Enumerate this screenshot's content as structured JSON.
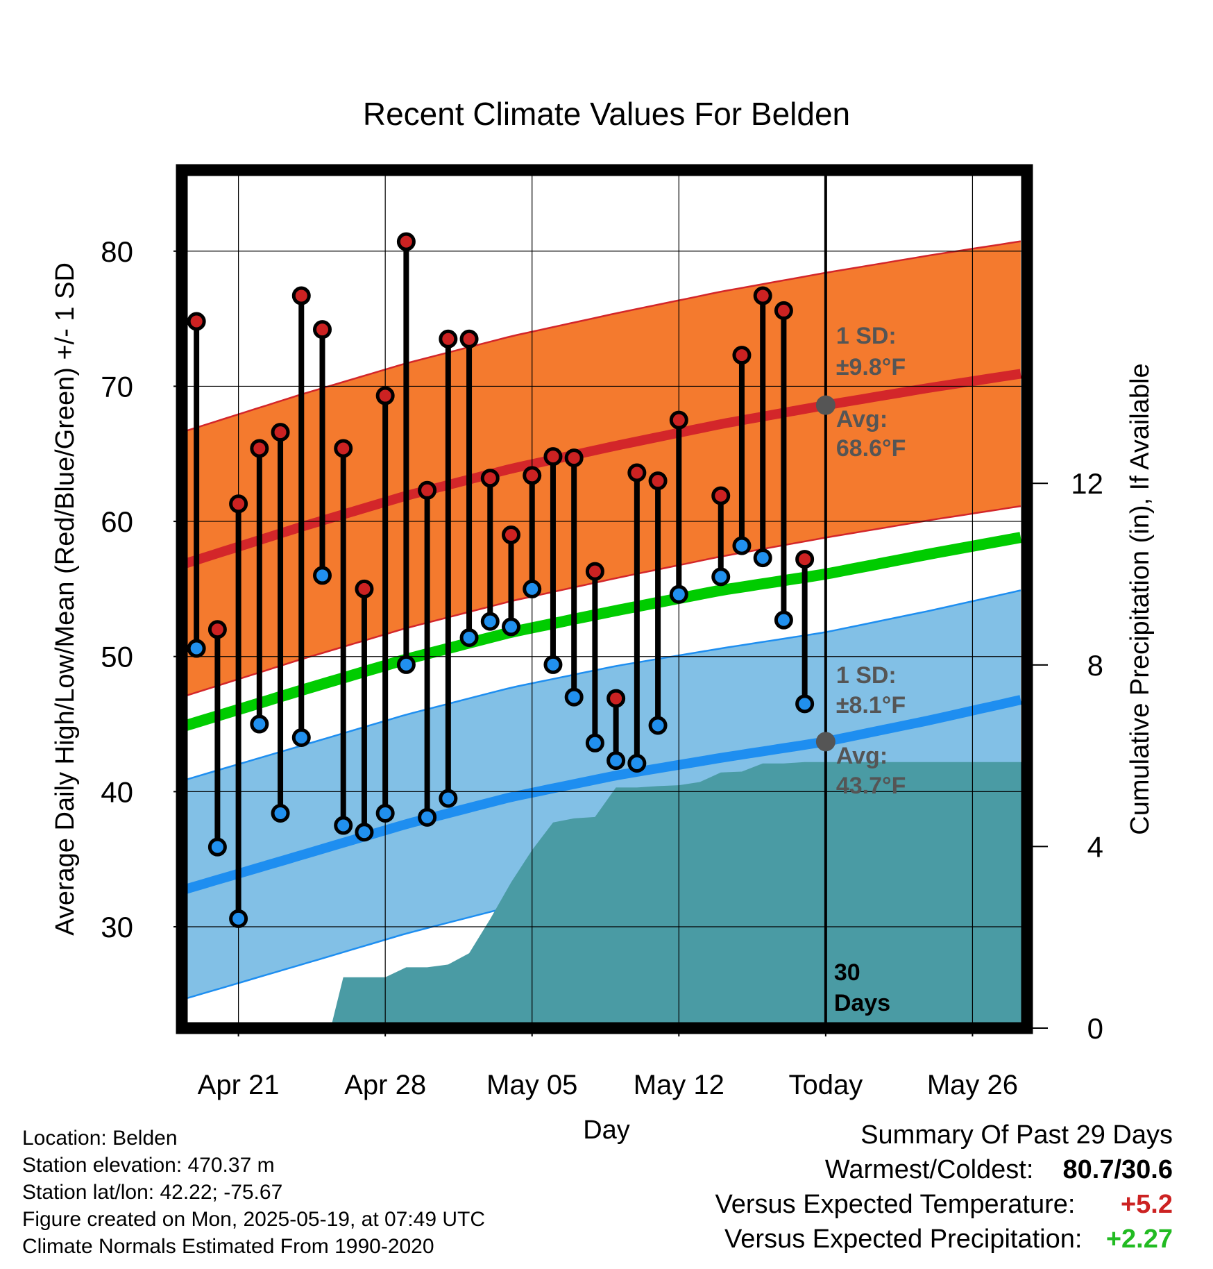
{
  "chart_data": {
    "type": "range-bar",
    "title": "Recent Climate Values For Belden",
    "xlabel": "Day",
    "ylabel_left": "Average Daily High/Low/Mean (Red/Blue/Green) +/- 1 SD",
    "ylabel_right": "Cumulative Precipitation (in), If Available",
    "ylim_left": [
      22.5,
      86
    ],
    "ylim_right": [
      0,
      18.9
    ],
    "yticks_left": [
      "30",
      "40",
      "50",
      "60",
      "70",
      "80"
    ],
    "yticks_right": [
      "0",
      "4",
      "8",
      "12"
    ],
    "x_tick_labels": [
      "Apr 21",
      "Apr 28",
      "May 05",
      "May 12",
      "Today",
      "May 26"
    ],
    "x_tick_days": [
      2,
      9,
      16,
      23,
      30,
      37
    ],
    "x_range_days": [
      -0.7,
      39.6
    ],
    "today_day": 30,
    "daily": {
      "day": [
        0,
        1,
        2,
        3,
        4,
        5,
        6,
        7,
        8,
        9,
        10,
        11,
        12,
        13,
        14,
        15,
        16,
        17,
        18,
        19,
        20,
        21,
        22,
        23,
        25,
        26,
        27,
        28,
        29,
        30
      ],
      "high": [
        74.8,
        52.0,
        61.3,
        65.4,
        66.6,
        76.7,
        74.2,
        65.4,
        55.0,
        69.3,
        80.7,
        62.3,
        73.5,
        73.5,
        63.2,
        59.0,
        63.4,
        64.8,
        64.7,
        56.3,
        46.9,
        63.6,
        63.0,
        67.5,
        61.9,
        72.3,
        76.7,
        75.6,
        57.2,
        null
      ],
      "low": [
        50.6,
        35.9,
        30.6,
        45.0,
        38.4,
        44.0,
        56.0,
        37.5,
        37.0,
        38.4,
        49.4,
        38.1,
        39.5,
        51.4,
        52.6,
        52.2,
        55.0,
        49.4,
        47.0,
        43.6,
        42.3,
        42.1,
        44.9,
        54.6,
        55.9,
        58.2,
        57.3,
        52.7,
        46.5,
        null
      ]
    },
    "normals": {
      "day": [
        -0.7,
        5,
        10,
        15,
        20,
        25,
        30,
        35,
        39.6
      ],
      "high_mean": [
        56.8,
        59.6,
        61.9,
        63.9,
        65.6,
        67.2,
        68.6,
        69.9,
        71.0
      ],
      "low_mean": [
        32.7,
        35.3,
        37.6,
        39.6,
        41.2,
        42.5,
        43.7,
        45.3,
        46.9
      ],
      "mean": [
        44.8,
        47.5,
        49.8,
        51.8,
        53.4,
        54.9,
        56.1,
        57.6,
        58.9
      ],
      "high_sd": 9.8,
      "low_sd": 8.1
    },
    "cumulative_precip": {
      "day": [
        -0.7,
        6.4,
        7.0,
        9.0,
        10.0,
        11.0,
        12.0,
        13.0,
        14.0,
        15.0,
        16.0,
        17.0,
        18.0,
        19.0,
        20.0,
        21.0,
        22.0,
        23.0,
        24.0,
        25.0,
        26.0,
        27.0,
        28.0,
        29.0,
        30.0,
        39.6
      ],
      "value": [
        0,
        0,
        1.12,
        1.12,
        1.34,
        1.34,
        1.4,
        1.65,
        2.4,
        3.21,
        3.92,
        4.53,
        4.62,
        4.65,
        5.3,
        5.3,
        5.33,
        5.35,
        5.42,
        5.63,
        5.65,
        5.83,
        5.83,
        5.86,
        5.86,
        5.86
      ]
    },
    "annotations": {
      "high_sd_title": "1 SD:",
      "high_sd_value": "±9.8°F",
      "high_avg_title": "Avg:",
      "high_avg_value": "68.6°F",
      "low_sd_title": "1 SD:",
      "low_sd_value": "±8.1°F",
      "low_avg_title": "Avg:",
      "low_avg_value": "43.7°F",
      "window_days": "30",
      "window_label": "Days"
    },
    "colors": {
      "high_band": "#f47a2e",
      "high_line": "#d3262a",
      "low_band": "#82c0e6",
      "low_line": "#1e8ef0",
      "mean_line": "#00cc00",
      "precip_fill": "#4a9ba4",
      "high_dot": "#cc2222",
      "low_dot": "#2190ee"
    }
  },
  "footer": {
    "location": "Location: Belden",
    "elevation": "Station elevation: 470.37 m",
    "latlon": "Station lat/lon: 42.22; -75.67",
    "created": "Figure created on Mon, 2025-05-19, at 07:49 UTC",
    "normals_source": "Climate Normals Estimated From 1990-2020"
  },
  "summary": {
    "title": "Summary Of Past 29 Days",
    "warmest_coldest_label": "Warmest/Coldest:",
    "warmest_coldest_value": "80.7/30.6",
    "temp_label": "Versus Expected Temperature:",
    "temp_value": "+5.2",
    "temp_color": "#cc2222",
    "precip_label": "Versus Expected Precipitation:",
    "precip_value": "+2.27",
    "precip_color": "#22bb22"
  }
}
